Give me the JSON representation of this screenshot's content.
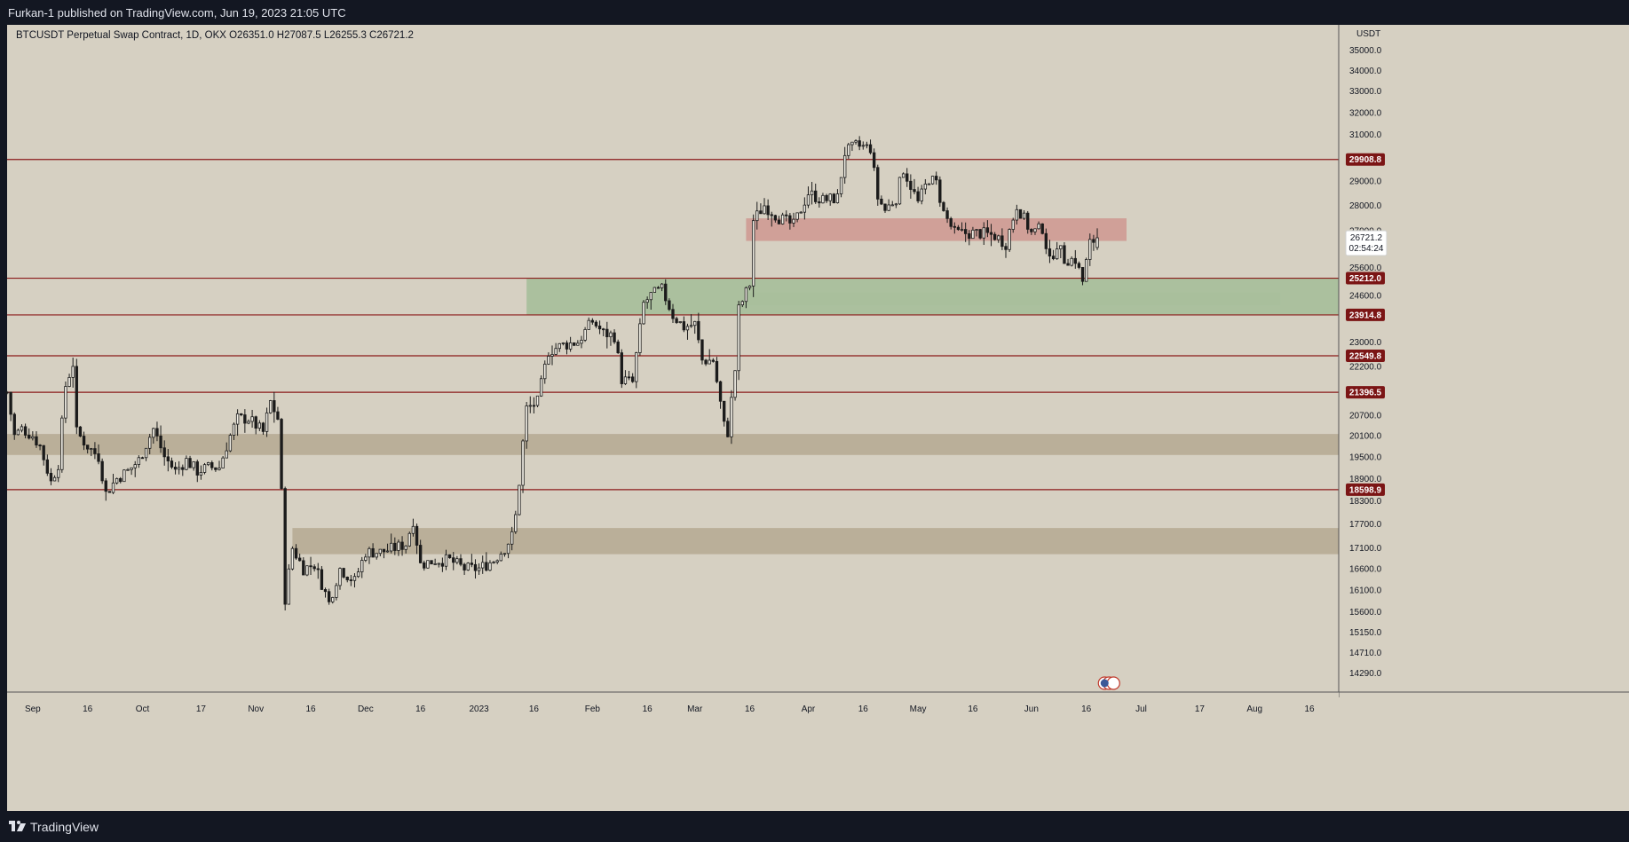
{
  "header": {
    "publisher": "Furkan-1 published on TradingView.com, Jun 19, 2023 21:05 UTC"
  },
  "symbol_info": {
    "text": "BTCUSDT Perpetual Swap Contract, 1D, OKX  O26351.0  H27087.5  L26255.3  C26721.2"
  },
  "footer": {
    "brand": "TradingView"
  },
  "colors": {
    "background": "#d6d0c2",
    "hline": "#8b1a1a",
    "hline_label_bg": "#7b1515",
    "green_zone": "#a9bf9c",
    "red_zone": "#cf9a93",
    "gray_zone": "#b8ad97",
    "candle": "#1b1b1b"
  },
  "chart_data": {
    "type": "candlestick",
    "title": "BTCUSDT Perpetual Swap Contract, 1D, OKX",
    "currency": "USDT",
    "ohlc_last": {
      "open": 26351.0,
      "high": 27087.5,
      "low": 26255.3,
      "close": 26721.2
    },
    "last_price_label": "26721.2",
    "countdown_label": "02:54:24",
    "y_axis_unit": "USDT",
    "y_scale": "log",
    "y_range": [
      13900,
      36300
    ],
    "y_ticks": [
      "35000.0",
      "34000.0",
      "33000.0",
      "32000.0",
      "31000.0",
      "29000.0",
      "28000.0",
      "27000.0",
      "25600.0",
      "24600.0",
      "23000.0",
      "22200.0",
      "20700.0",
      "20100.0",
      "19500.0",
      "18900.0",
      "18300.0",
      "17700.0",
      "17100.0",
      "16600.0",
      "16100.0",
      "15600.0",
      "15150.0",
      "14710.0",
      "14290.0"
    ],
    "x_start": "2022-08-25",
    "x_end": "2023-08-24",
    "x_ticks": [
      {
        "label": "Sep",
        "date": "2022-09-01"
      },
      {
        "label": "16",
        "date": "2022-09-16"
      },
      {
        "label": "Oct",
        "date": "2022-10-01"
      },
      {
        "label": "17",
        "date": "2022-10-17"
      },
      {
        "label": "Nov",
        "date": "2022-11-01"
      },
      {
        "label": "16",
        "date": "2022-11-16"
      },
      {
        "label": "Dec",
        "date": "2022-12-01"
      },
      {
        "label": "16",
        "date": "2022-12-16"
      },
      {
        "label": "2023",
        "date": "2023-01-01"
      },
      {
        "label": "16",
        "date": "2023-01-16"
      },
      {
        "label": "Feb",
        "date": "2023-02-01"
      },
      {
        "label": "16",
        "date": "2023-02-16"
      },
      {
        "label": "Mar",
        "date": "2023-03-01"
      },
      {
        "label": "16",
        "date": "2023-03-16"
      },
      {
        "label": "Apr",
        "date": "2023-04-01"
      },
      {
        "label": "16",
        "date": "2023-04-16"
      },
      {
        "label": "May",
        "date": "2023-05-01"
      },
      {
        "label": "16",
        "date": "2023-05-16"
      },
      {
        "label": "Jun",
        "date": "2023-06-01"
      },
      {
        "label": "16",
        "date": "2023-06-16"
      },
      {
        "label": "Jul",
        "date": "2023-07-01"
      },
      {
        "label": "17",
        "date": "2023-07-17"
      },
      {
        "label": "Aug",
        "date": "2023-08-01"
      },
      {
        "label": "16",
        "date": "2023-08-16"
      }
    ],
    "horizontal_levels": [
      {
        "price": 29908.8,
        "label": "29908.8"
      },
      {
        "price": 25212.0,
        "label": "25212.0"
      },
      {
        "price": 23914.8,
        "label": "23914.8"
      },
      {
        "price": 22549.8,
        "label": "22549.8"
      },
      {
        "price": 21396.5,
        "label": "21396.5"
      },
      {
        "price": 18598.9,
        "label": "18598.9"
      }
    ],
    "zones": [
      {
        "kind": "green",
        "start": "2023-01-14",
        "end": "2023-08-24",
        "top": 25212.0,
        "bottom": 23914.8
      },
      {
        "kind": "green",
        "start": "2023-03-15",
        "end": "2023-08-08",
        "top": 24700,
        "bottom": 24250
      },
      {
        "kind": "red",
        "start": "2023-03-15",
        "end": "2023-06-27",
        "top": 27480,
        "bottom": 26600
      },
      {
        "kind": "gray",
        "start": "2022-08-25",
        "end": "2023-08-24",
        "top": 20150,
        "bottom": 19550
      },
      {
        "kind": "gray",
        "start": "2022-11-11",
        "end": "2023-08-24",
        "top": 17600,
        "bottom": 16950
      }
    ],
    "candles_daily_close": [
      {
        "date": "2022-08-25",
        "c": 21400
      },
      {
        "date": "2022-08-27",
        "c": 20100
      },
      {
        "date": "2022-08-29",
        "c": 20300
      },
      {
        "date": "2022-09-01",
        "c": 20100
      },
      {
        "date": "2022-09-03",
        "c": 19800
      },
      {
        "date": "2022-09-06",
        "c": 18800
      },
      {
        "date": "2022-09-08",
        "c": 19300
      },
      {
        "date": "2022-09-10",
        "c": 21600
      },
      {
        "date": "2022-09-12",
        "c": 22300
      },
      {
        "date": "2022-09-13",
        "c": 20200
      },
      {
        "date": "2022-09-16",
        "c": 19800
      },
      {
        "date": "2022-09-19",
        "c": 19500
      },
      {
        "date": "2022-09-21",
        "c": 18500
      },
      {
        "date": "2022-09-24",
        "c": 18900
      },
      {
        "date": "2022-09-27",
        "c": 19100
      },
      {
        "date": "2022-09-30",
        "c": 19400
      },
      {
        "date": "2022-10-04",
        "c": 20300
      },
      {
        "date": "2022-10-07",
        "c": 19500
      },
      {
        "date": "2022-10-10",
        "c": 19100
      },
      {
        "date": "2022-10-13",
        "c": 19400
      },
      {
        "date": "2022-10-16",
        "c": 19100
      },
      {
        "date": "2022-10-19",
        "c": 19200
      },
      {
        "date": "2022-10-22",
        "c": 19200
      },
      {
        "date": "2022-10-25",
        "c": 20100
      },
      {
        "date": "2022-10-27",
        "c": 20600
      },
      {
        "date": "2022-10-30",
        "c": 20600
      },
      {
        "date": "2022-11-03",
        "c": 20200
      },
      {
        "date": "2022-11-05",
        "c": 21100
      },
      {
        "date": "2022-11-07",
        "c": 20600
      },
      {
        "date": "2022-11-08",
        "c": 18500
      },
      {
        "date": "2022-11-09",
        "c": 15900
      },
      {
        "date": "2022-11-11",
        "c": 17100
      },
      {
        "date": "2022-11-14",
        "c": 16600
      },
      {
        "date": "2022-11-17",
        "c": 16700
      },
      {
        "date": "2022-11-21",
        "c": 15800
      },
      {
        "date": "2022-11-24",
        "c": 16600
      },
      {
        "date": "2022-11-28",
        "c": 16300
      },
      {
        "date": "2022-12-01",
        "c": 17000
      },
      {
        "date": "2022-12-05",
        "c": 17000
      },
      {
        "date": "2022-12-09",
        "c": 17100
      },
      {
        "date": "2022-12-12",
        "c": 17200
      },
      {
        "date": "2022-12-14",
        "c": 17800
      },
      {
        "date": "2022-12-16",
        "c": 16700
      },
      {
        "date": "2022-12-20",
        "c": 16800
      },
      {
        "date": "2022-12-24",
        "c": 16800
      },
      {
        "date": "2022-12-28",
        "c": 16600
      },
      {
        "date": "2023-01-01",
        "c": 16600
      },
      {
        "date": "2023-01-05",
        "c": 16800
      },
      {
        "date": "2023-01-08",
        "c": 17100
      },
      {
        "date": "2023-01-10",
        "c": 17400
      },
      {
        "date": "2023-01-11",
        "c": 17900
      },
      {
        "date": "2023-01-12",
        "c": 18800
      },
      {
        "date": "2023-01-13",
        "c": 19900
      },
      {
        "date": "2023-01-14",
        "c": 20900
      },
      {
        "date": "2023-01-17",
        "c": 21100
      },
      {
        "date": "2023-01-20",
        "c": 22700
      },
      {
        "date": "2023-01-24",
        "c": 22900
      },
      {
        "date": "2023-01-28",
        "c": 23000
      },
      {
        "date": "2023-02-01",
        "c": 23700
      },
      {
        "date": "2023-02-04",
        "c": 23300
      },
      {
        "date": "2023-02-07",
        "c": 23200
      },
      {
        "date": "2023-02-09",
        "c": 21800
      },
      {
        "date": "2023-02-12",
        "c": 21700
      },
      {
        "date": "2023-02-15",
        "c": 24300
      },
      {
        "date": "2023-02-17",
        "c": 24600
      },
      {
        "date": "2023-02-20",
        "c": 24800
      },
      {
        "date": "2023-02-23",
        "c": 23900
      },
      {
        "date": "2023-02-26",
        "c": 23500
      },
      {
        "date": "2023-03-01",
        "c": 23600
      },
      {
        "date": "2023-03-03",
        "c": 22400
      },
      {
        "date": "2023-03-06",
        "c": 22400
      },
      {
        "date": "2023-03-09",
        "c": 20400
      },
      {
        "date": "2023-03-10",
        "c": 20200
      },
      {
        "date": "2023-03-12",
        "c": 22100
      },
      {
        "date": "2023-03-13",
        "c": 24100
      },
      {
        "date": "2023-03-16",
        "c": 25000
      },
      {
        "date": "2023-03-17",
        "c": 27400
      },
      {
        "date": "2023-03-20",
        "c": 28000
      },
      {
        "date": "2023-03-24",
        "c": 27500
      },
      {
        "date": "2023-03-28",
        "c": 27200
      },
      {
        "date": "2023-04-01",
        "c": 28500
      },
      {
        "date": "2023-04-05",
        "c": 28200
      },
      {
        "date": "2023-04-09",
        "c": 28300
      },
      {
        "date": "2023-04-11",
        "c": 30200
      },
      {
        "date": "2023-04-14",
        "c": 30500
      },
      {
        "date": "2023-04-18",
        "c": 30400
      },
      {
        "date": "2023-04-20",
        "c": 28300
      },
      {
        "date": "2023-04-22",
        "c": 27800
      },
      {
        "date": "2023-04-25",
        "c": 28300
      },
      {
        "date": "2023-04-27",
        "c": 29500
      },
      {
        "date": "2023-05-01",
        "c": 28100
      },
      {
        "date": "2023-05-04",
        "c": 29100
      },
      {
        "date": "2023-05-06",
        "c": 28900
      },
      {
        "date": "2023-05-08",
        "c": 27700
      },
      {
        "date": "2023-05-11",
        "c": 26900
      },
      {
        "date": "2023-05-14",
        "c": 26900
      },
      {
        "date": "2023-05-18",
        "c": 26900
      },
      {
        "date": "2023-05-22",
        "c": 26800
      },
      {
        "date": "2023-05-25",
        "c": 26500
      },
      {
        "date": "2023-05-28",
        "c": 28000
      },
      {
        "date": "2023-06-01",
        "c": 26900
      },
      {
        "date": "2023-06-04",
        "c": 27100
      },
      {
        "date": "2023-06-06",
        "c": 25800
      },
      {
        "date": "2023-06-08",
        "c": 26500
      },
      {
        "date": "2023-06-10",
        "c": 25900
      },
      {
        "date": "2023-06-13",
        "c": 25900
      },
      {
        "date": "2023-06-15",
        "c": 25100
      },
      {
        "date": "2023-06-17",
        "c": 26500
      },
      {
        "date": "2023-06-19",
        "c": 26721.2
      }
    ]
  }
}
